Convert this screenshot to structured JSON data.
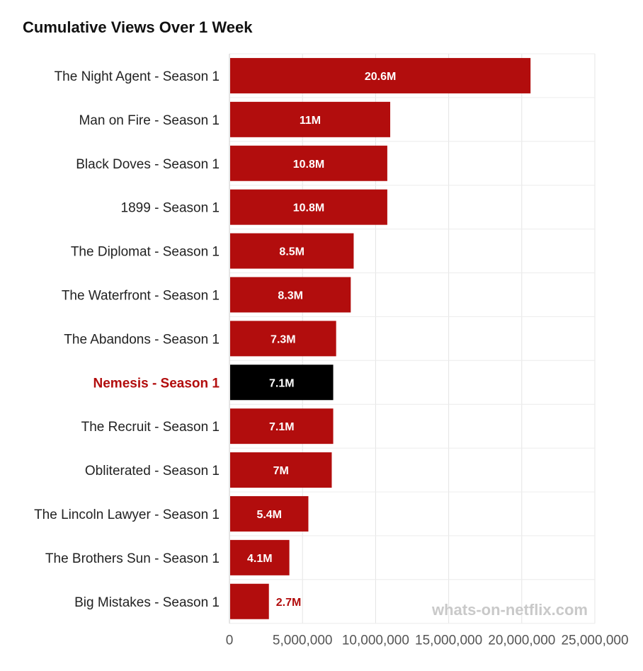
{
  "chart_data": {
    "type": "bar",
    "orientation": "horizontal",
    "title": "Cumulative Views Over 1 Week",
    "xlabel": "",
    "ylabel": "",
    "xlim": [
      0,
      25000000
    ],
    "x_ticks": [
      "0",
      "5,000,000",
      "10,000,000",
      "15,000,000",
      "20,000,000",
      "25,000,000"
    ],
    "x_tick_values": [
      0,
      5000000,
      10000000,
      15000000,
      20000000,
      25000000
    ],
    "grid": true,
    "highlight_category": "Nemesis - Season 1",
    "colors": {
      "bar": "#b20d0d",
      "highlight_bar": "#000000",
      "highlight_label": "#b20d0d"
    },
    "categories": [
      "The Night Agent - Season 1",
      "Man on Fire - Season 1",
      "Black Doves - Season 1",
      "1899 - Season 1",
      "The Diplomat - Season 1",
      "The Waterfront - Season 1",
      "The Abandons - Season 1",
      "Nemesis - Season 1",
      "The Recruit - Season 1",
      "Obliterated - Season 1",
      "The Lincoln Lawyer - Season 1",
      "The Brothers Sun - Season 1",
      "Big Mistakes - Season 1"
    ],
    "values": [
      20600000,
      11000000,
      10800000,
      10800000,
      8500000,
      8300000,
      7300000,
      7100000,
      7100000,
      7000000,
      5400000,
      4100000,
      2700000
    ],
    "value_labels": [
      "20.6M",
      "11M",
      "10.8M",
      "10.8M",
      "8.5M",
      "8.3M",
      "7.3M",
      "7.1M",
      "7.1M",
      "7M",
      "5.4M",
      "4.1M",
      "2.7M"
    ]
  },
  "watermark": "whats-on-netflix.com"
}
